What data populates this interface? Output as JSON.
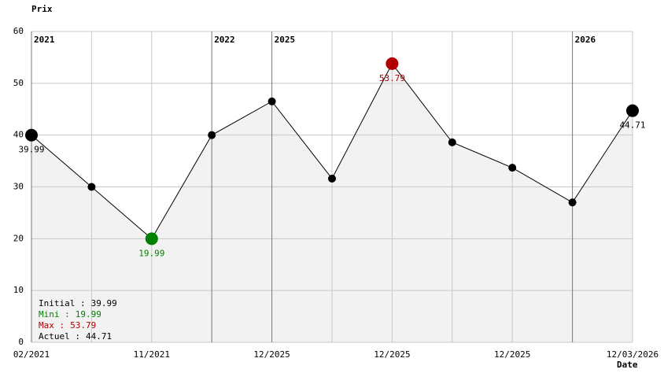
{
  "chart_data": {
    "type": "line",
    "y_label": "Prix",
    "x_label": "Date",
    "categories": [
      "02/2021",
      null,
      "11/2021",
      null,
      "12/2025",
      null,
      "12/2025",
      null,
      "12/2025",
      null,
      "12/03/2026"
    ],
    "year_markers": [
      "2021",
      null,
      null,
      "2022",
      "2025",
      null,
      null,
      null,
      null,
      "2026",
      null
    ],
    "series": [
      {
        "name": "Prix",
        "color": "#000000",
        "values": [
          39.99,
          30,
          19.99,
          40,
          46.5,
          31.6,
          53.79,
          38.6,
          33.7,
          27,
          44.71
        ],
        "value_labels": [
          "39.99",
          null,
          "19.99",
          null,
          null,
          null,
          "53.79",
          null,
          null,
          null,
          "44.71"
        ]
      }
    ],
    "min_color": "#008000",
    "max_color": "#b00000",
    "ylim": [
      0,
      60
    ],
    "yticks": [
      0,
      10,
      20,
      30,
      40,
      50,
      60
    ],
    "grid": true,
    "stats": [
      {
        "label": "Initial :",
        "value": 39.99,
        "color": "#000000"
      },
      {
        "label": "Mini :",
        "value": 19.99,
        "color": "#008000"
      },
      {
        "label": "Max :",
        "value": 53.79,
        "color": "#b00000"
      },
      {
        "label": "Actuel :",
        "value": 44.71,
        "color": "#000000"
      }
    ]
  }
}
